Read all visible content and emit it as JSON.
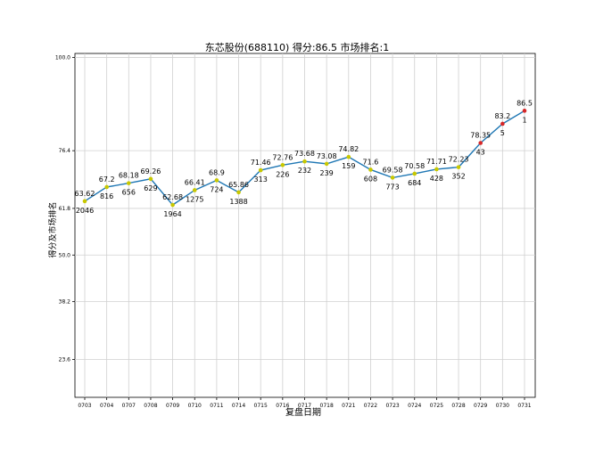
{
  "chart_data": {
    "type": "line",
    "title": "东芯股份(688110) 得分:86.5  市场排名:1",
    "xlabel": "复盘日期",
    "ylabel": "得分及市场排名",
    "categories": [
      "0703",
      "0704",
      "0707",
      "0708",
      "0709",
      "0710",
      "0711",
      "0714",
      "0715",
      "0716",
      "0717",
      "0718",
      "0721",
      "0722",
      "0723",
      "0724",
      "0725",
      "0728",
      "0729",
      "0730",
      "0731"
    ],
    "y_ticks": [
      23.6,
      38.2,
      50.0,
      61.8,
      76.4,
      100.0
    ],
    "ylim": [
      14,
      101
    ],
    "grid": true,
    "series": [
      {
        "values": [
          63.62,
          67.2,
          68.18,
          69.26,
          62.68,
          66.41,
          68.9,
          65.86,
          71.46,
          72.76,
          73.68,
          73.08,
          74.82,
          71.6,
          69.58,
          70.58,
          71.71,
          72.23,
          78.35,
          83.2,
          86.5
        ],
        "line_color": "#1f77b4"
      }
    ],
    "rank_labels": [
      "2046",
      "816",
      "656",
      "629",
      "1964",
      "1275",
      "724",
      "1388",
      "313",
      "226",
      "232",
      "239",
      "159",
      "608",
      "773",
      "684",
      "428",
      "352",
      "43",
      "5",
      "1"
    ],
    "marker_colors": [
      "#c8c800",
      "#c8c800",
      "#c8c800",
      "#c8c800",
      "#c8c800",
      "#c8c800",
      "#c8c800",
      "#c8c800",
      "#c8c800",
      "#c8c800",
      "#c8c800",
      "#c8c800",
      "#c8c800",
      "#c8c800",
      "#c8c800",
      "#c8c800",
      "#c8c800",
      "#c8c800",
      "#d62728",
      "#d62728",
      "#d62728"
    ]
  }
}
